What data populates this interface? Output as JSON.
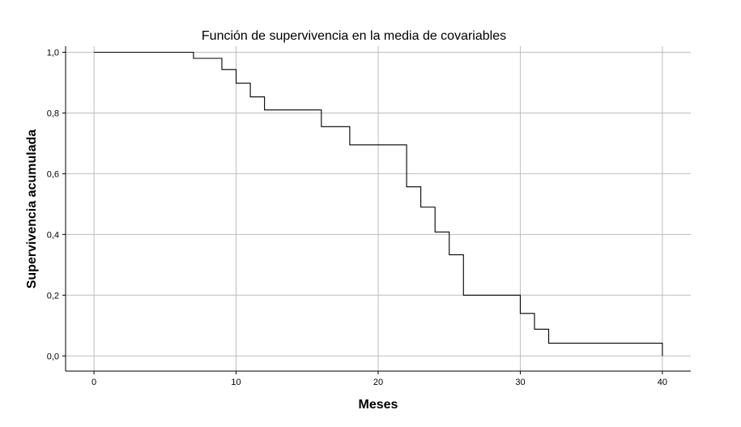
{
  "chart_data": {
    "type": "line",
    "step": true,
    "title": "Función de supervivencia en la media de covariables",
    "xlabel": "Meses",
    "ylabel": "Supervivencia acumulada",
    "xlim": [
      -2,
      42
    ],
    "ylim": [
      -0.05,
      1.02
    ],
    "xticks": [
      0,
      10,
      20,
      30,
      40
    ],
    "xtick_labels": [
      "0",
      "10",
      "20",
      "30",
      "40"
    ],
    "yticks": [
      0.0,
      0.2,
      0.4,
      0.6,
      0.8,
      1.0
    ],
    "ytick_labels": [
      "0,0",
      "0,2",
      "0,4",
      "0,6",
      "0,8",
      "1,0"
    ],
    "grid": true,
    "legend": "none",
    "colors": {
      "line": "#000000",
      "grid": "#bdbdbd"
    },
    "series": [
      {
        "x": [
          0,
          7,
          9,
          10,
          11,
          12,
          16,
          18,
          22,
          23,
          24,
          25,
          26,
          30,
          31,
          32,
          40
        ],
        "y": [
          1.0,
          0.98,
          0.943,
          0.898,
          0.853,
          0.81,
          0.755,
          0.695,
          0.557,
          0.49,
          0.408,
          0.333,
          0.2,
          0.14,
          0.088,
          0.042,
          0.0
        ]
      }
    ]
  }
}
